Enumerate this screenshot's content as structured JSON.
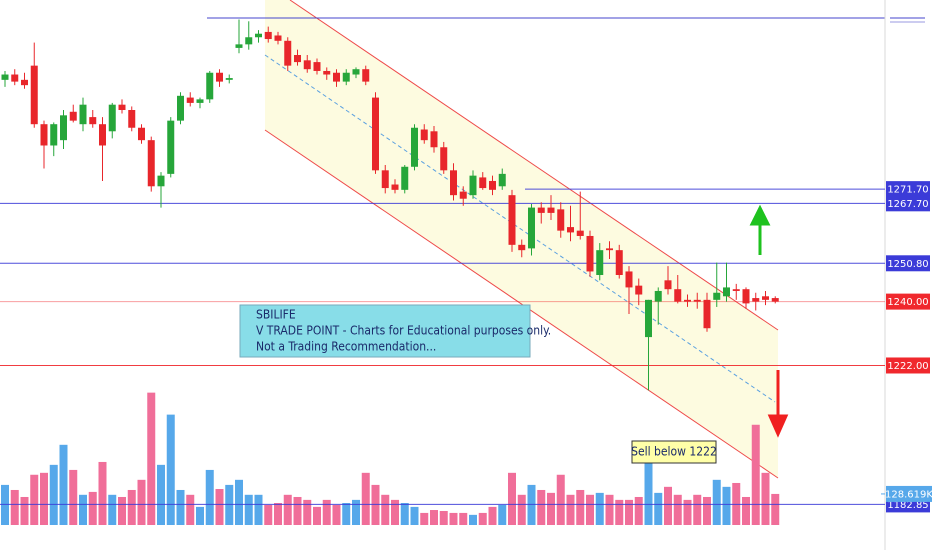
{
  "chart_data": {
    "type": "candlestick",
    "ylim": [
      1170,
      1325
    ],
    "up_color": "#26a63a",
    "down_color": "#e8262b",
    "volume_up_color": "#56a8ea",
    "volume_down_color": "#f06e99",
    "vlim": [
      0,
      650000
    ],
    "open": [
      1302.5,
      1304,
      1302.5,
      1306.5,
      1290,
      1284,
      1285.5,
      1293.5,
      1290,
      1292,
      1290,
      1288,
      1295.5,
      1294,
      1289,
      1285.5,
      1272.5,
      1276,
      1291,
      1297.5,
      1296,
      1297,
      1304.5,
      1302.5,
      1311.5,
      1312.5,
      1314.5,
      1316,
      1315,
      1313.5,
      1309.5,
      1308,
      1307.5,
      1305,
      1304.5,
      1302,
      1304,
      1305.5,
      1297.5,
      1277,
      1273,
      1271.5,
      1278,
      1288.5,
      1288,
      1283.5,
      1277,
      1271,
      1270,
      1275,
      1274,
      1272.5,
      1270,
      1256,
      1255,
      1266.5,
      1266.5,
      1266,
      1261,
      1260,
      1258.5,
      1247.5,
      1255,
      1254.5,
      1248.5,
      1244.5,
      1230,
      1240,
      1246,
      1243.5,
      1240.5,
      1240.5,
      1240.5,
      1240.5,
      1241.5,
      1243.5,
      1243.5,
      1241,
      1241.5,
      1241
    ],
    "high": [
      1305,
      1305.5,
      1304.5,
      1313,
      1291,
      1290.5,
      1294,
      1295.5,
      1297.5,
      1294,
      1292,
      1296,
      1297,
      1295,
      1290,
      1286.5,
      1276.5,
      1292,
      1299,
      1299,
      1297.5,
      1305,
      1305.5,
      1304,
      1319.5,
      1319,
      1316.5,
      1317.5,
      1316,
      1314.5,
      1311,
      1309.5,
      1308.5,
      1306,
      1305.5,
      1305.5,
      1306,
      1306.5,
      1299,
      1278.5,
      1274.5,
      1278.5,
      1290,
      1290,
      1289.5,
      1285,
      1279,
      1272.5,
      1277,
      1276.5,
      1275.5,
      1277.5,
      1271.5,
      1257.5,
      1267.5,
      1268,
      1270,
      1268,
      1267,
      1271,
      1260,
      1256.5,
      1257,
      1256,
      1250,
      1246.5,
      1240.5,
      1244,
      1250,
      1247.5,
      1242,
      1242.5,
      1242.5,
      1251,
      1251,
      1245,
      1244,
      1242.5,
      1243,
      1241.5
    ],
    "low": [
      1300.5,
      1301,
      1300,
      1289,
      1277.5,
      1281,
      1283,
      1290.5,
      1288,
      1289,
      1274,
      1286,
      1293,
      1288,
      1284.5,
      1271,
      1266.5,
      1275,
      1290,
      1295,
      1294.5,
      1296,
      1300.5,
      1301.5,
      1310,
      1311,
      1313,
      1313,
      1312.5,
      1305,
      1306.5,
      1304.5,
      1304,
      1302.5,
      1300.5,
      1301,
      1303,
      1301,
      1276,
      1270.5,
      1270.5,
      1270.5,
      1277,
      1284.5,
      1282,
      1276,
      1268.5,
      1267,
      1269,
      1271.5,
      1270,
      1271.5,
      1254,
      1252.5,
      1253,
      1262,
      1263,
      1258,
      1257,
      1257.5,
      1247,
      1246,
      1252,
      1246.5,
      1236.5,
      1239,
      1215,
      1233.5,
      1242,
      1239.5,
      1238.5,
      1238,
      1231.5,
      1238.5,
      1240,
      1240.5,
      1238,
      1237.5,
      1239,
      1239.5
    ],
    "close": [
      1304,
      1302,
      1301,
      1290,
      1284,
      1290,
      1292.5,
      1291,
      1295.5,
      1290,
      1284,
      1295.5,
      1294,
      1289,
      1285.5,
      1272.5,
      1275.5,
      1291,
      1298,
      1296,
      1297,
      1304.5,
      1302,
      1303,
      1312.5,
      1314.5,
      1315.5,
      1314,
      1313.5,
      1306.5,
      1307.5,
      1305.5,
      1305,
      1304,
      1302,
      1304.5,
      1305.5,
      1302,
      1277,
      1272,
      1271.5,
      1278,
      1289,
      1285.5,
      1283.5,
      1277,
      1270,
      1269,
      1275.5,
      1272,
      1271.5,
      1276,
      1256,
      1254.5,
      1266.5,
      1265,
      1265,
      1260,
      1259.5,
      1258.5,
      1248.5,
      1254.5,
      1254.5,
      1247.5,
      1244,
      1242,
      1240.5,
      1243,
      1243.5,
      1240,
      1240,
      1240,
      1232.5,
      1242.5,
      1244,
      1243,
      1239.5,
      1240,
      1240.5,
      1240
    ],
    "volume": [
      166000,
      145000,
      116000,
      208000,
      216000,
      249000,
      332000,
      228000,
      125000,
      137000,
      261000,
      125000,
      116000,
      145000,
      187000,
      548000,
      249000,
      457000,
      145000,
      125000,
      75000,
      228000,
      149000,
      166000,
      187000,
      125000,
      125000,
      83000,
      91000,
      125000,
      116000,
      104000,
      75000,
      104000,
      83000,
      91000,
      104000,
      216000,
      166000,
      125000,
      104000,
      91000,
      75000,
      50000,
      62000,
      58000,
      50000,
      50000,
      42000,
      50000,
      75000,
      83000,
      216000,
      125000,
      166000,
      145000,
      133000,
      208000,
      125000,
      145000,
      125000,
      133000,
      125000,
      104000,
      104000,
      116000,
      332000,
      133000,
      158000,
      125000,
      104000,
      125000,
      116000,
      187000,
      158000,
      174000,
      116000,
      415000,
      216000,
      128619
    ],
    "volume_label": {
      "value": 128619,
      "label": "128.619K"
    },
    "levels": [
      {
        "value": 1271.7,
        "label": "1271.70",
        "color": "#3b3bd8"
      },
      {
        "value": 1267.7,
        "label": "1267.70",
        "color": "#3b3bd8"
      },
      {
        "value": 1250.8,
        "label": "1250.80",
        "color": "#3b3bd8"
      },
      {
        "value": 1240,
        "label": "1240.00",
        "color": "#f0282d"
      },
      {
        "value": 1222,
        "label": "1222.00",
        "color": "#f0282d"
      },
      {
        "value": 1182.85,
        "label": "1182.85",
        "color": "#3b3bd8"
      }
    ],
    "note": [
      "SBILIFE",
      "V TRADE POINT - Charts for Educational purposes only.",
      "Not a Trading Recommendation..."
    ],
    "callout": "Sell below 1222"
  }
}
